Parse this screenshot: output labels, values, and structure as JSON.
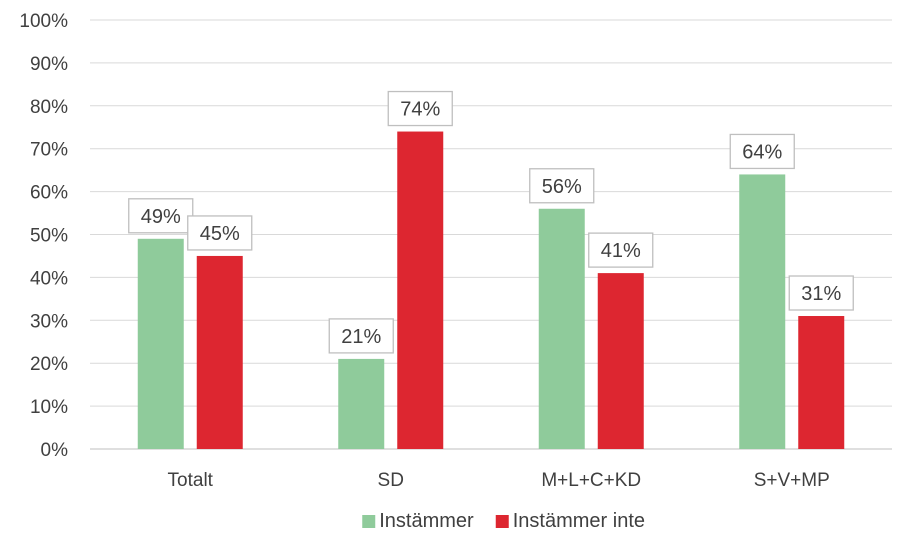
{
  "chart_data": {
    "type": "bar",
    "categories": [
      "Totalt",
      "SD",
      "M+L+C+KD",
      "S+V+MP"
    ],
    "series": [
      {
        "name": "Instämmer",
        "values": [
          49,
          21,
          56,
          64
        ],
        "labels": [
          "49%",
          "21%",
          "56%",
          "64%"
        ],
        "color": "#8fcb9b"
      },
      {
        "name": "Instämmer inte",
        "values": [
          45,
          74,
          41,
          31
        ],
        "labels": [
          "45%",
          "74%",
          "41%",
          "31%"
        ],
        "color": "#dd2630"
      }
    ],
    "ylim": [
      0,
      100
    ],
    "yticks": [
      0,
      10,
      20,
      30,
      40,
      50,
      60,
      70,
      80,
      90,
      100
    ],
    "ytick_labels": [
      "0%",
      "10%",
      "20%",
      "30%",
      "40%",
      "50%",
      "60%",
      "70%",
      "80%",
      "90%",
      "100%"
    ],
    "grid": true,
    "legend": "bottom"
  }
}
